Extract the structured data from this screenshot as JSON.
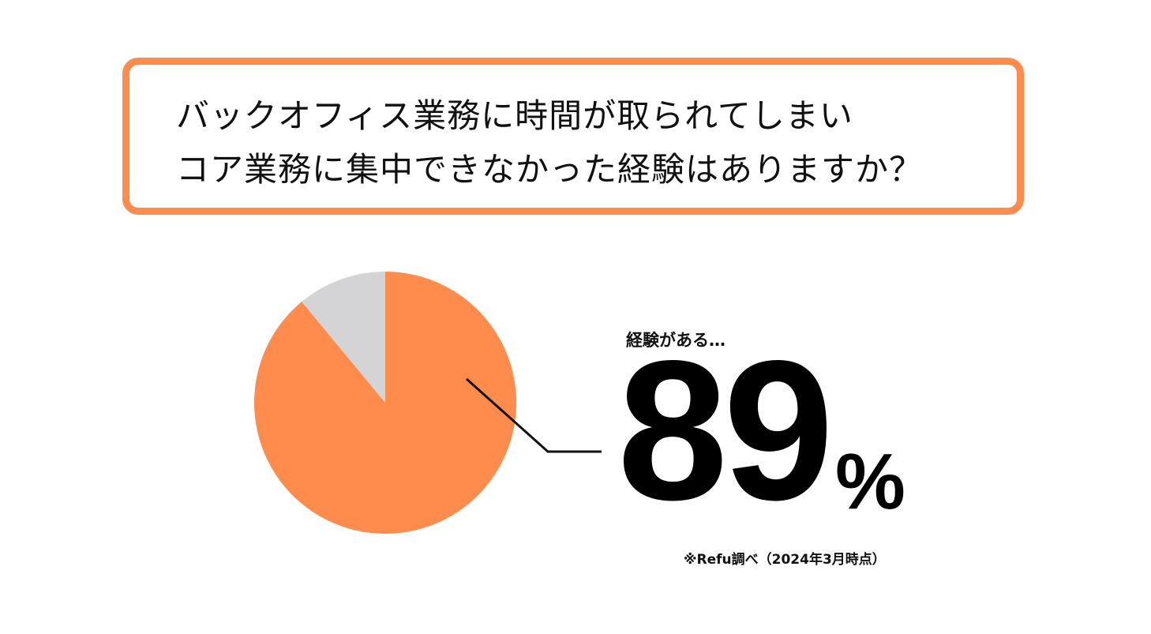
{
  "question": {
    "line1": "バックオフィス業務に時間が取られてしまい",
    "line2": "コア業務に集中できなかった経験はありますか？"
  },
  "callout": {
    "label": "経験がある…",
    "value": "89",
    "unit": "%"
  },
  "source_note": "※Refu調べ（2024年3月時点）",
  "colors": {
    "accent": "#FF8B4D",
    "remainder": "#D4D4D6",
    "text": "#111111"
  },
  "chart_data": {
    "type": "pie",
    "title": "",
    "slices": [
      {
        "label": "経験がある",
        "value": 89,
        "color": "#FF8B4D"
      },
      {
        "label": "",
        "value": 11,
        "color": "#D4D4D6"
      }
    ],
    "start_angle_deg": 0,
    "direction": "clockwise"
  }
}
